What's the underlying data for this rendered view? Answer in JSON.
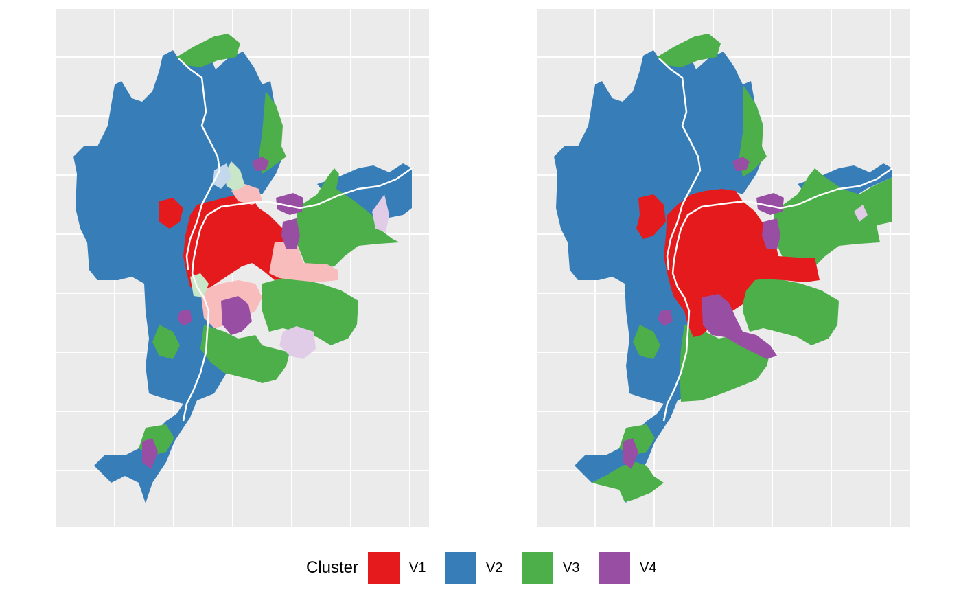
{
  "legend": {
    "title": "Cluster",
    "items": [
      {
        "label": "V1",
        "color": "#E41A1C"
      },
      {
        "label": "V2",
        "color": "#377EB8"
      },
      {
        "label": "V3",
        "color": "#4DAF4A"
      },
      {
        "label": "V4",
        "color": "#984EA3"
      }
    ]
  },
  "colors": {
    "panel_background": "#EBEBEB",
    "grid": "#FFFFFF",
    "V1": "#E41A1C",
    "V2": "#377EB8",
    "V3": "#4DAF4A",
    "V4": "#984EA3",
    "V1_faded": "#F8BCBC",
    "V3_faded": "#C9E6C8",
    "V4_faded": "#E0CCE6",
    "V2_faded": "#C3D8EC"
  },
  "panels": [
    {
      "name": "left-map",
      "shows_uncertain_faded": true
    },
    {
      "name": "right-map",
      "shows_uncertain_faded": false
    }
  ]
}
